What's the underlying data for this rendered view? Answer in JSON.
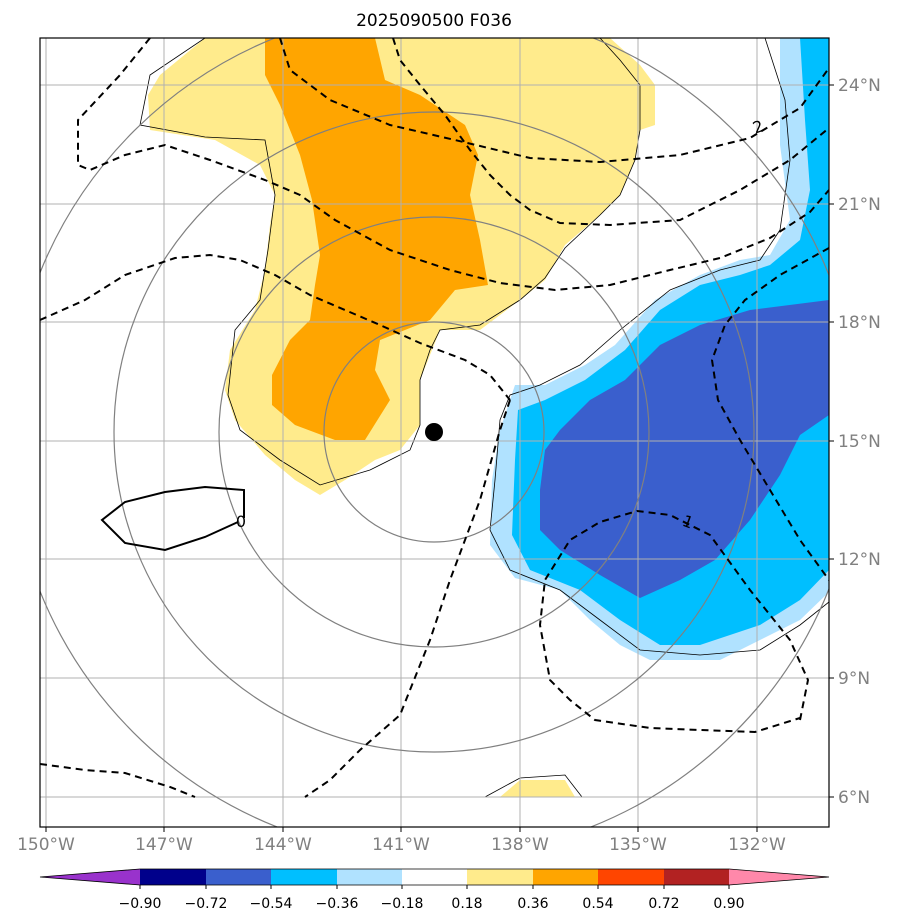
{
  "chart_data": {
    "type": "contour-map",
    "title": "2025090500 F036",
    "lon_ticks": [
      "150°W",
      "147°W",
      "144°W",
      "141°W",
      "138°W",
      "135°W",
      "132°W"
    ],
    "lat_ticks": [
      "24°N",
      "21°N",
      "18°N",
      "15°N",
      "12°N",
      "9°N",
      "6°N"
    ],
    "lon_range": [
      -150.2,
      -130.2
    ],
    "lat_range": [
      5.2,
      25.2
    ],
    "center_marker": {
      "lon": -140.7,
      "lat": 15.2
    },
    "colorbar": {
      "levels": [
        "−0.90",
        "−0.72",
        "−0.54",
        "−0.36",
        "−0.18",
        "0.18",
        "0.36",
        "0.54",
        "0.72",
        "0.90"
      ],
      "colors": [
        "#9932CC",
        "#00008B",
        "#3A5FCD",
        "#00BFFF",
        "#B0E2FF",
        "#FFFFFF",
        "#FFEB8C",
        "#FFA500",
        "#FF4500",
        "#B22222",
        "#FF88AA"
      ],
      "extend": "both"
    },
    "contour_labels": [
      "2",
      "1",
      "0"
    ],
    "colors": {
      "grid": "#b0b0b0",
      "range_rings": "#808080",
      "contour": "#000000"
    }
  }
}
